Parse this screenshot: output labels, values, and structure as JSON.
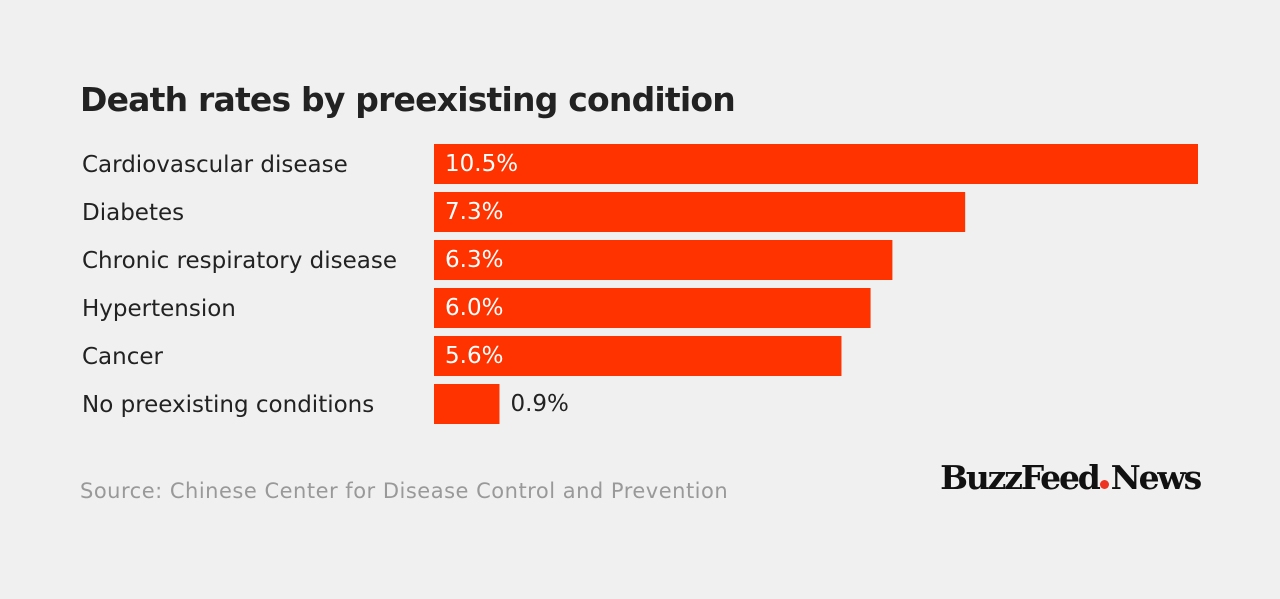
{
  "chart_data": {
    "type": "bar",
    "orientation": "horizontal",
    "title": "Death rates by preexisting condition",
    "categories": [
      "Cardiovascular disease",
      "Diabetes",
      "Chronic respiratory disease",
      "Hypertension",
      "Cancer",
      "No preexisting conditions"
    ],
    "values": [
      10.5,
      7.3,
      6.3,
      6.0,
      5.6,
      0.9
    ],
    "value_labels": [
      "10.5%",
      "7.3%",
      "6.3%",
      "6.0%",
      "5.6%",
      "0.9%"
    ],
    "xlim": [
      0,
      10.5
    ],
    "grid": false,
    "bar_color": "#ff3300",
    "xlabel": "",
    "ylabel": ""
  },
  "source": "Source: Chinese Center for Disease Control and Prevention",
  "logo": {
    "left": "BuzzFeed",
    "right": "News"
  },
  "colors": {
    "background": "#f0f0f0",
    "bar": "#ff3300",
    "text": "#222222",
    "source_text": "#999999",
    "logo_dot": "#ee3322"
  }
}
